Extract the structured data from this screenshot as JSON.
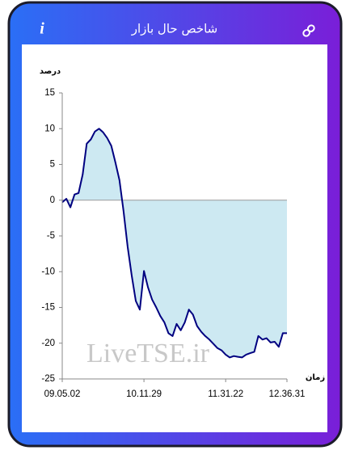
{
  "header": {
    "title": "شاخص حال بازار",
    "info_icon": "i"
  },
  "chart_data": {
    "type": "line",
    "ylabel": "درصد",
    "xlabel": "زمان",
    "watermark": "LiveTSE.ir",
    "categories": [
      "09.05.02",
      null,
      null,
      null,
      null,
      null,
      null,
      null,
      null,
      null,
      null,
      null,
      null,
      null,
      null,
      null,
      null,
      null,
      null,
      null,
      "10.11.29",
      null,
      null,
      null,
      null,
      null,
      null,
      null,
      null,
      null,
      null,
      null,
      null,
      null,
      null,
      null,
      null,
      null,
      null,
      null,
      "11.31.22",
      null,
      null,
      null,
      null,
      null,
      null,
      null,
      null,
      null,
      null,
      null,
      null,
      null,
      null,
      "12.36.31"
    ],
    "series": [
      {
        "color": "#000080",
        "fill": "#cde9f2",
        "values": [
          -0.3,
          0.2,
          -1,
          0.8,
          1,
          3.6,
          7.9,
          8.5,
          9.6,
          10,
          9.5,
          8.7,
          7.6,
          5.3,
          2.8,
          -1.5,
          -6.5,
          -10.5,
          -14.1,
          -15.3,
          -9.9,
          -12.2,
          -13.9,
          -15,
          -16.2,
          -17.1,
          -18.6,
          -19,
          -17.3,
          -18.2,
          -17.1,
          -15.3,
          -16,
          -17.6,
          -18.4,
          -19,
          -19.5,
          -20.1,
          -20.7,
          -21,
          -21.6,
          -22,
          -21.8,
          -21.9,
          -22,
          -21.6,
          -21.4,
          -21.2,
          -19,
          -19.5,
          -19.3,
          -19.9,
          -19.8,
          -20.5,
          -18.6,
          -18.6
        ]
      }
    ],
    "ylim": [
      -25,
      15
    ],
    "yticks": [
      -25,
      -20,
      -15,
      -10,
      -5,
      0,
      5,
      10,
      15
    ]
  }
}
